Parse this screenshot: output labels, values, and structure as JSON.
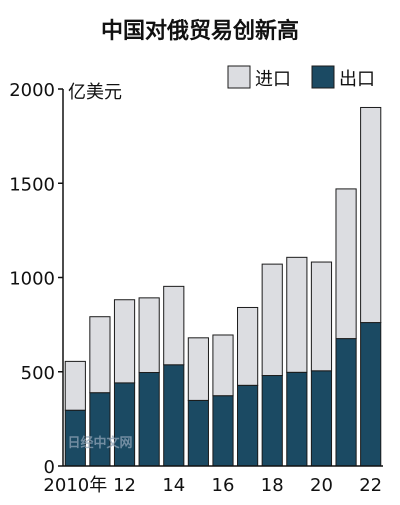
{
  "chart_data": {
    "type": "bar",
    "stacked": true,
    "title": "中国对俄贸易创新高",
    "unit": "亿美元",
    "categories": [
      "2010",
      "2011",
      "2012",
      "2013",
      "2014",
      "2015",
      "2016",
      "2017",
      "2018",
      "2019",
      "2020",
      "2021",
      "2022"
    ],
    "x_tick_labels": [
      {
        "index": 0,
        "label": "2010年"
      },
      {
        "index": 2,
        "label": "12"
      },
      {
        "index": 4,
        "label": "14"
      },
      {
        "index": 6,
        "label": "16"
      },
      {
        "index": 8,
        "label": "18"
      },
      {
        "index": 10,
        "label": "20"
      },
      {
        "index": 12,
        "label": "22"
      }
    ],
    "series": [
      {
        "name": "出口",
        "color": "#1b4a63",
        "values": [
          296,
          389,
          441,
          496,
          537,
          348,
          373,
          428,
          480,
          497,
          505,
          676,
          761
        ]
      },
      {
        "name": "进口",
        "color": "#dcdde1",
        "values": [
          259,
          403,
          441,
          396,
          416,
          332,
          322,
          413,
          591,
          610,
          577,
          794,
          1141
        ]
      }
    ],
    "ylim": [
      0,
      2000
    ],
    "yticks": [
      0,
      500,
      1000,
      1500,
      2000
    ],
    "legend_position": "top-right",
    "grid": false
  },
  "watermark": "日经中文网"
}
